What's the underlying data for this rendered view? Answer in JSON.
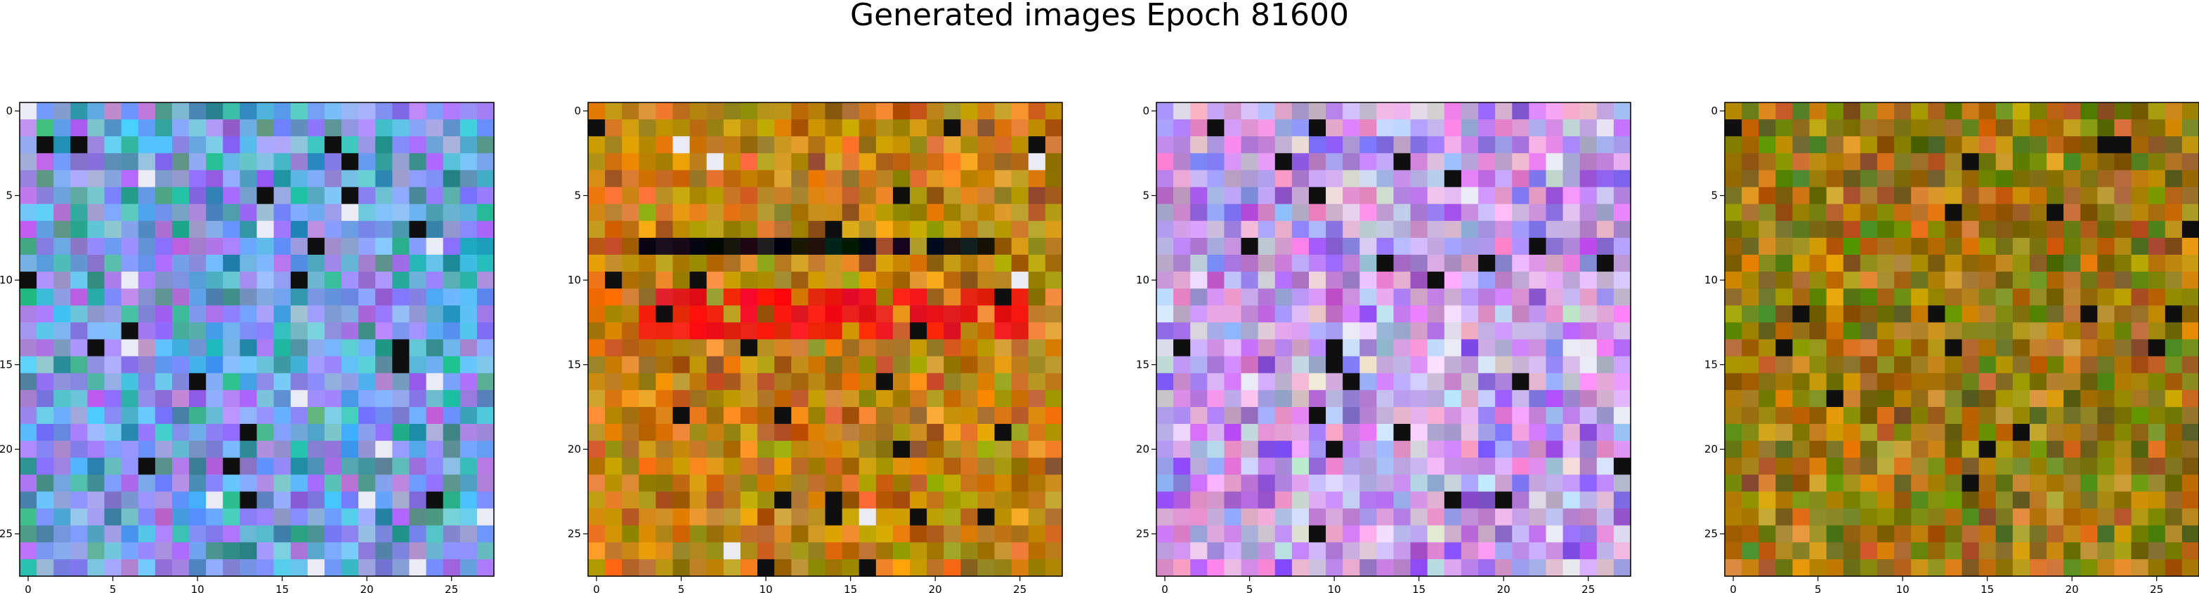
{
  "chart_data": {
    "type": "heatmap",
    "title": "Generated images Epoch 81600",
    "panels": [
      {
        "name": "",
        "palette_note": "blue-purple noise",
        "dominant_colors": [
          "#8f8ff0",
          "#7ea8f0",
          "#a07ce8",
          "#5fb0e0",
          "#3fa0a0"
        ],
        "features": []
      },
      {
        "name": "",
        "palette_note": "orange-brown noise with black/red horizontal band",
        "dominant_colors": [
          "#c07a10",
          "#d08a1a",
          "#a86a10",
          "#b09010",
          "#e08a20"
        ],
        "features": [
          {
            "rows": [
              11,
              13
            ],
            "cols": [
              3,
              25
            ],
            "color": "#f01a1a"
          },
          {
            "rows": [
              8,
              8
            ],
            "cols": [
              2,
              23
            ],
            "color": "#101010"
          }
        ]
      },
      {
        "name": "",
        "palette_note": "pink-purple-blue noise",
        "dominant_colors": [
          "#c890e0",
          "#b0a0e8",
          "#e0a0e0",
          "#9c6ae0",
          "#d8c8e8"
        ],
        "features": []
      },
      {
        "name": "",
        "palette_note": "olive-orange noise",
        "dominant_colors": [
          "#b07a10",
          "#8a7a10",
          "#c88a20",
          "#6a7a10",
          "#9a6a10"
        ],
        "features": []
      }
    ],
    "grid_size": [
      28,
      28
    ],
    "x_ticks": [
      0,
      5,
      10,
      15,
      20,
      25
    ],
    "y_ticks": [
      0,
      5,
      10,
      15,
      20,
      25
    ],
    "x_tick_labels": [
      "0",
      "5",
      "10",
      "15",
      "20",
      "25"
    ],
    "y_tick_labels": [
      "0",
      "5",
      "10",
      "15",
      "20",
      "25"
    ],
    "xlim": [
      -0.5,
      27.5
    ],
    "ylim": [
      27.5,
      -0.5
    ],
    "grid": false
  }
}
